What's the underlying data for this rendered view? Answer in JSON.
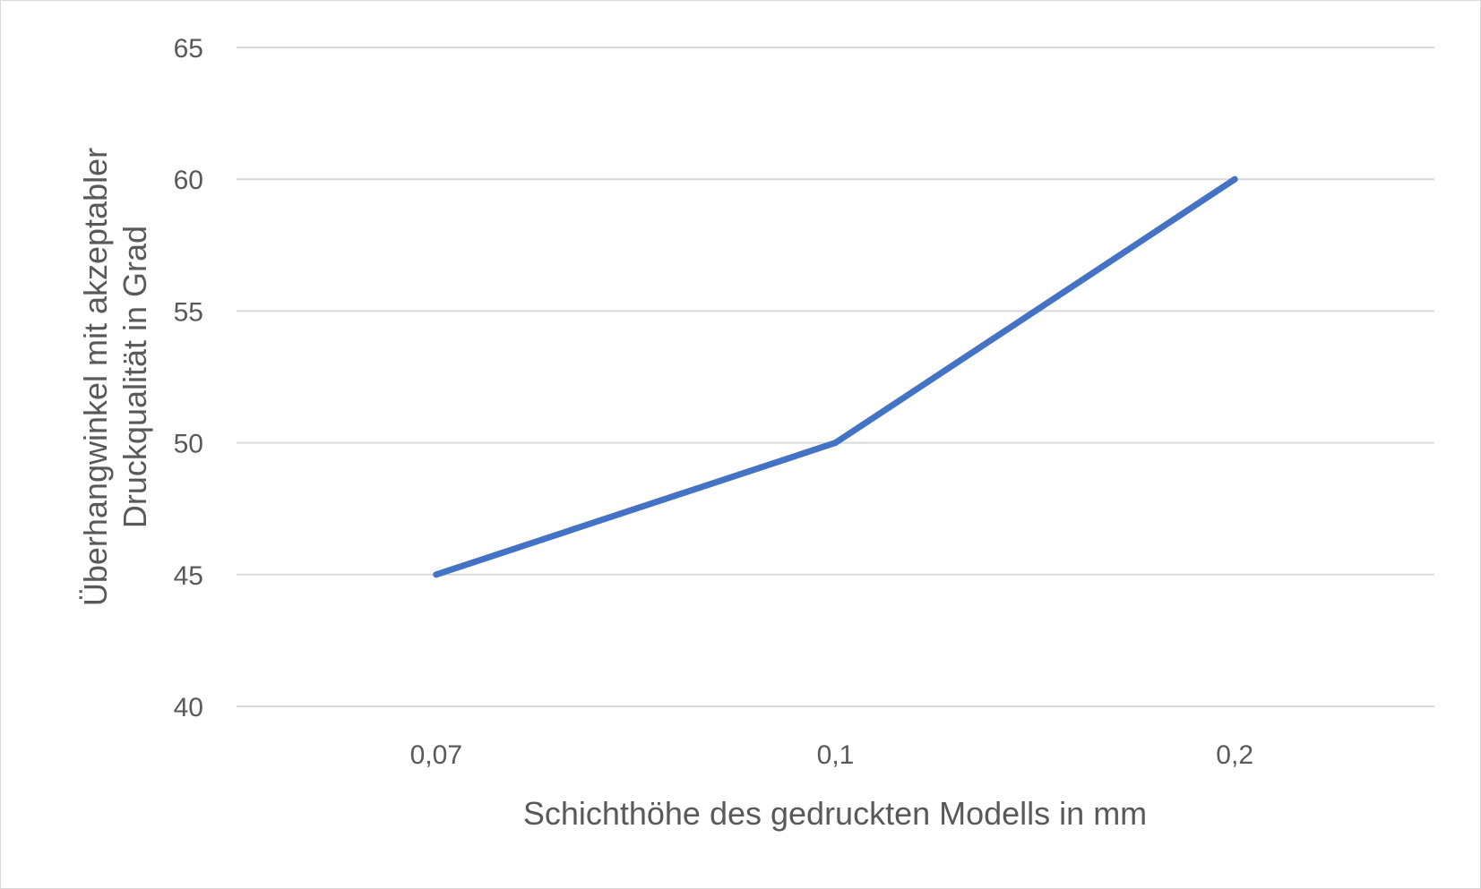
{
  "chart_data": {
    "type": "line",
    "title": "",
    "xlabel": "Schichthöhe des gedruckten Modells in mm",
    "ylabel_lines": [
      "Überhangwinkel mit akzeptabler",
      "Druckqualität in Grad"
    ],
    "categories": [
      "0,07",
      "0,1",
      "0,2"
    ],
    "series": [
      {
        "values": [
          45,
          50,
          60
        ],
        "color": "#4472c4"
      }
    ],
    "ylim": [
      40,
      65
    ],
    "yticks": [
      40,
      45,
      50,
      55,
      60,
      65
    ],
    "grid": true,
    "legend": "none"
  }
}
